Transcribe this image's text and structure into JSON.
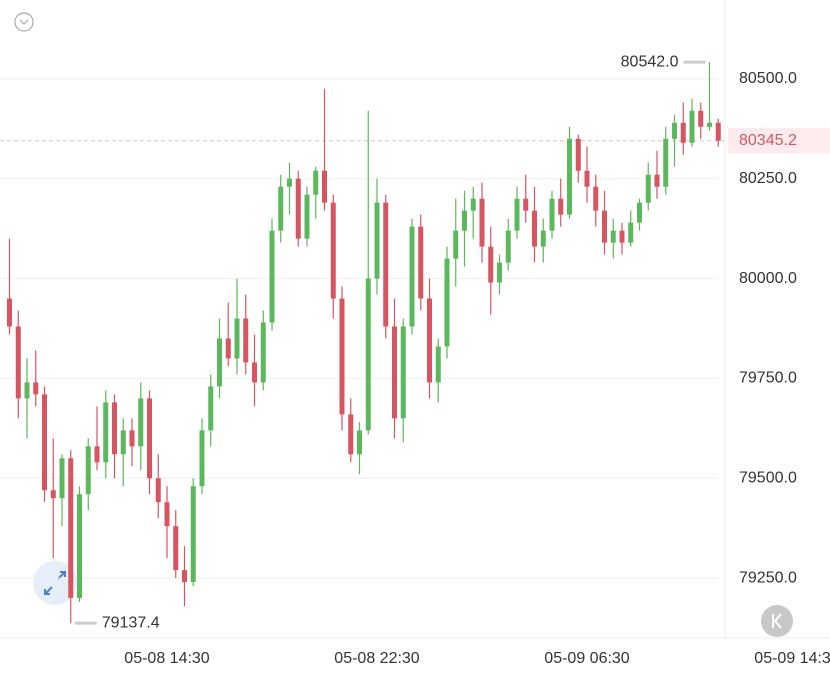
{
  "chart_data": {
    "type": "candlestick",
    "categories": [
      null,
      null,
      null,
      null,
      null,
      null,
      null,
      null,
      null,
      null,
      null,
      null,
      null,
      null,
      null,
      null,
      null,
      null,
      "05-08 14:30",
      null,
      null,
      null,
      null,
      null,
      null,
      null,
      null,
      null,
      null,
      null,
      null,
      null,
      null,
      null,
      null,
      null,
      null,
      null,
      null,
      null,
      null,
      null,
      "05-08 22:30",
      null,
      null,
      null,
      null,
      null,
      null,
      null,
      null,
      null,
      null,
      null,
      null,
      null,
      null,
      null,
      null,
      null,
      null,
      null,
      null,
      null,
      null,
      null,
      "05-09 06:30",
      null,
      null,
      null,
      null,
      null,
      null,
      null,
      null,
      null,
      null,
      null,
      null,
      null,
      null,
      null,
      null,
      null,
      null,
      null,
      null,
      null,
      null,
      null,
      "05-09 14:30"
    ],
    "open": [
      79950,
      79880,
      79700,
      79740,
      79710,
      79470,
      79450,
      79550,
      79200,
      79460,
      79580,
      79540,
      79690,
      79560,
      79620,
      79580,
      79700,
      79500,
      79440,
      79380,
      79270,
      79240,
      79480,
      79620,
      79730,
      79850,
      79800,
      79900,
      79790,
      79740,
      79890,
      80120,
      80230,
      80250,
      80100,
      80210,
      80270,
      80190,
      79950,
      79660,
      79560,
      79620,
      80000,
      80190,
      79880,
      79650,
      79880,
      80130,
      79950,
      79740,
      79830,
      80050,
      80120,
      80170,
      80200,
      80080,
      79990,
      80040,
      80120,
      80200,
      80170,
      80080,
      80120,
      80200,
      80160,
      80350,
      80270,
      80230,
      80170,
      80090,
      80120,
      80090,
      80140,
      80190,
      80260,
      80230,
      80350,
      80390,
      80340,
      80420,
      80380,
      80390,
      null,
      null,
      null,
      null,
      null,
      null,
      null,
      null,
      null
    ],
    "high": [
      80100,
      79920,
      79800,
      79820,
      79730,
      79600,
      79560,
      79570,
      79480,
      79600,
      79680,
      79720,
      79710,
      79650,
      79650,
      79740,
      79720,
      79560,
      79480,
      79420,
      79330,
      79500,
      79650,
      79760,
      79900,
      79940,
      80000,
      79960,
      79860,
      79920,
      80150,
      80260,
      80290,
      80270,
      80230,
      80280,
      80475,
      80210,
      79980,
      79700,
      79640,
      80420,
      80250,
      80210,
      79950,
      79900,
      80150,
      80160,
      80000,
      79850,
      80080,
      80200,
      80220,
      80230,
      80240,
      80130,
      80060,
      80150,
      80230,
      80260,
      80230,
      80150,
      80220,
      80250,
      80380,
      80360,
      80330,
      80260,
      80220,
      80150,
      80140,
      80170,
      80200,
      80290,
      80320,
      80380,
      80410,
      80440,
      80450,
      80440,
      80542,
      80400,
      null,
      null,
      null,
      null,
      null,
      null,
      null,
      null,
      null
    ],
    "low": [
      79860,
      79650,
      79600,
      79680,
      79440,
      79300,
      79380,
      79137.4,
      79190,
      79420,
      79520,
      79500,
      79500,
      79480,
      79530,
      79520,
      79460,
      79400,
      79300,
      79250,
      79180,
      79230,
      79460,
      79580,
      79700,
      79780,
      79760,
      79760,
      79680,
      79720,
      79870,
      80090,
      80160,
      80080,
      80080,
      80150,
      80170,
      79900,
      79620,
      79540,
      79510,
      79610,
      79960,
      79850,
      79600,
      79590,
      79860,
      79920,
      79700,
      79690,
      79800,
      79980,
      80030,
      80100,
      80040,
      79910,
      79960,
      80020,
      80100,
      80140,
      80040,
      80040,
      80100,
      80130,
      80150,
      80240,
      80190,
      80130,
      80060,
      80050,
      80060,
      80080,
      80120,
      80170,
      80200,
      80210,
      80280,
      80310,
      80330,
      80350,
      80370,
      80330,
      null,
      null,
      null,
      null,
      null,
      null,
      null,
      null,
      null
    ],
    "close": [
      79880,
      79700,
      79740,
      79710,
      79470,
      79450,
      79550,
      79200,
      79460,
      79580,
      79540,
      79690,
      79560,
      79620,
      79580,
      79700,
      79500,
      79440,
      79380,
      79270,
      79240,
      79480,
      79620,
      79730,
      79850,
      79800,
      79900,
      79790,
      79740,
      79890,
      80120,
      80230,
      80250,
      80100,
      80210,
      80270,
      80190,
      79950,
      79660,
      79560,
      79620,
      80000,
      80190,
      79880,
      79650,
      79880,
      80130,
      79950,
      79740,
      79830,
      80050,
      80120,
      80170,
      80200,
      80080,
      79990,
      80040,
      80120,
      80200,
      80170,
      80080,
      80120,
      80200,
      80160,
      80350,
      80270,
      80230,
      80170,
      80090,
      80120,
      80090,
      80140,
      80190,
      80260,
      80230,
      80350,
      80390,
      80340,
      80420,
      80380,
      80390,
      80345.2,
      null,
      null,
      null,
      null,
      null,
      null,
      null,
      null,
      null
    ],
    "up_color": "#5cb85c",
    "down_color": "#d65560",
    "ylim": [
      79100,
      80697.5
    ],
    "yticks": [
      {
        "value": 79250,
        "label": "79250.0"
      },
      {
        "value": 79500,
        "label": "79500.0"
      },
      {
        "value": 79750,
        "label": "79750.0"
      },
      {
        "value": 80000,
        "label": "80000.0"
      },
      {
        "value": 80250,
        "label": "80250.0"
      },
      {
        "value": 80500,
        "label": "80500.0"
      }
    ],
    "grid": true,
    "last_price": 80345.2,
    "max_label": {
      "value": 80542,
      "label": "80542.0"
    },
    "min_label": 79137.4
  }
}
